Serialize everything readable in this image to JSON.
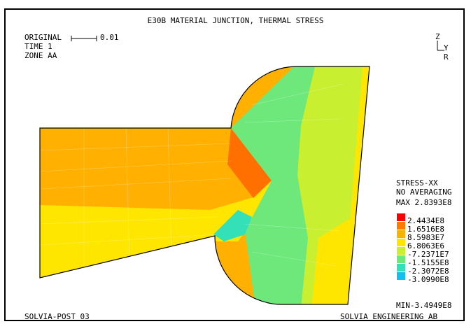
{
  "header": {
    "title": "E30B MATERIAL JUNCTION, THERMAL STRESS",
    "original_label": "ORIGINAL",
    "scale_value": "0.01",
    "time": "TIME 1",
    "zone": "ZONE AA"
  },
  "axes": {
    "z": "Z",
    "y": "Y",
    "r": "R"
  },
  "legend": {
    "line1": "STRESS-XX",
    "line2": "NO AVERAGING",
    "max": "MAX 2.8393E8",
    "min": "MIN-3.4949E8",
    "levels": [
      {
        "label": "2.4434E8",
        "color": "#ff0000"
      },
      {
        "label": "1.6516E8",
        "color": "#ff7a00"
      },
      {
        "label": "8.5983E7",
        "color": "#ffb000"
      },
      {
        "label": "6.8063E6",
        "color": "#ffe600"
      },
      {
        "label": "-7.2371E7",
        "color": "#c8f030"
      },
      {
        "label": "-1.5155E8",
        "color": "#6ee87a"
      },
      {
        "label": "-2.3072E8",
        "color": "#33e0b8"
      },
      {
        "label": "-3.0990E8",
        "color": "#11c0f0"
      }
    ]
  },
  "footer": {
    "left": "SOLVIA-POST 03",
    "right": "SOLVIA ENGINEERING AB"
  }
}
